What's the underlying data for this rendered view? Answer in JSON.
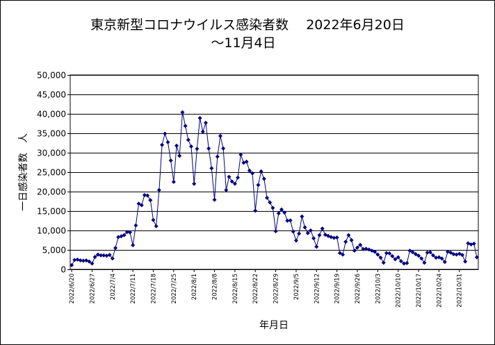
{
  "chart_data": {
    "type": "line",
    "title": "東京新型コロナウイルス感染者数　 2022年6月20日",
    "subtitle": "～11月4日",
    "xlabel": "年月日",
    "ylabel": "一日感染者数　人",
    "ylim": [
      0,
      50000
    ],
    "yticks": [
      "0",
      "5,000",
      "10,000",
      "15,000",
      "20,000",
      "25,000",
      "30,000",
      "35,000",
      "40,000",
      "45,000",
      "50,000"
    ],
    "xticks": [
      "2022/6/20",
      "2022/6/27",
      "2022/7/4",
      "2022/7/11",
      "2022/7/18",
      "2022/7/25",
      "2022/8/1",
      "2022/8/8",
      "2022/8/15",
      "2022/8/22",
      "2022/8/29",
      "2022/9/5",
      "2022/9/12",
      "2022/9/19",
      "2022/9/26",
      "2022/10/3",
      "2022/10/10",
      "2022/10/17",
      "2022/10/24",
      "2022/10/31"
    ],
    "grid": "horizontal",
    "legend": "none",
    "colors": {
      "series": "#000080",
      "grid": "#000000",
      "background": "#ffffff"
    },
    "series": [
      {
        "values": [
          1076,
          2400,
          2500,
          2300,
          2200,
          2300,
          2000,
          1500,
          3200,
          3800,
          3600,
          3600,
          3500,
          3700,
          2800,
          5500,
          8300,
          8500,
          8800,
          9600,
          9500,
          6200,
          11300,
          16900,
          16500,
          19100,
          19000,
          17800,
          12700,
          11100,
          20400,
          32000,
          34900,
          32700,
          28000,
          22500,
          31800,
          29200,
          40400,
          36900,
          33300,
          31600,
          22000,
          31000,
          38900,
          35400,
          37700,
          31100,
          26000,
          17900,
          29000,
          34300,
          31100,
          20400,
          23800,
          22600,
          22000,
          23600,
          29500,
          27400,
          27700,
          25400,
          24700,
          15100,
          21700,
          25200,
          23300,
          18400,
          17200,
          15800,
          9800,
          14400,
          15400,
          14600,
          12500,
          12600,
          9700,
          7400,
          9200,
          13600,
          10800,
          9300,
          10000,
          8000,
          5800,
          8800,
          10500,
          8900,
          8600,
          8300,
          8100,
          8200,
          4200,
          3800,
          7100,
          8800,
          7500,
          4800,
          5600,
          6300,
          5200,
          5300,
          5100,
          4800,
          4500,
          3800,
          3000,
          1700,
          4200,
          4100,
          3400,
          2600,
          3100,
          2100,
          1500,
          1600,
          4800,
          4400,
          3900,
          3500,
          2800,
          1700,
          4300,
          4400,
          3600,
          3000,
          3100,
          2800,
          1900,
          4500,
          4300,
          3900,
          3800,
          4000,
          3700,
          2000,
          6700,
          6400,
          6600,
          3100
        ]
      }
    ]
  }
}
